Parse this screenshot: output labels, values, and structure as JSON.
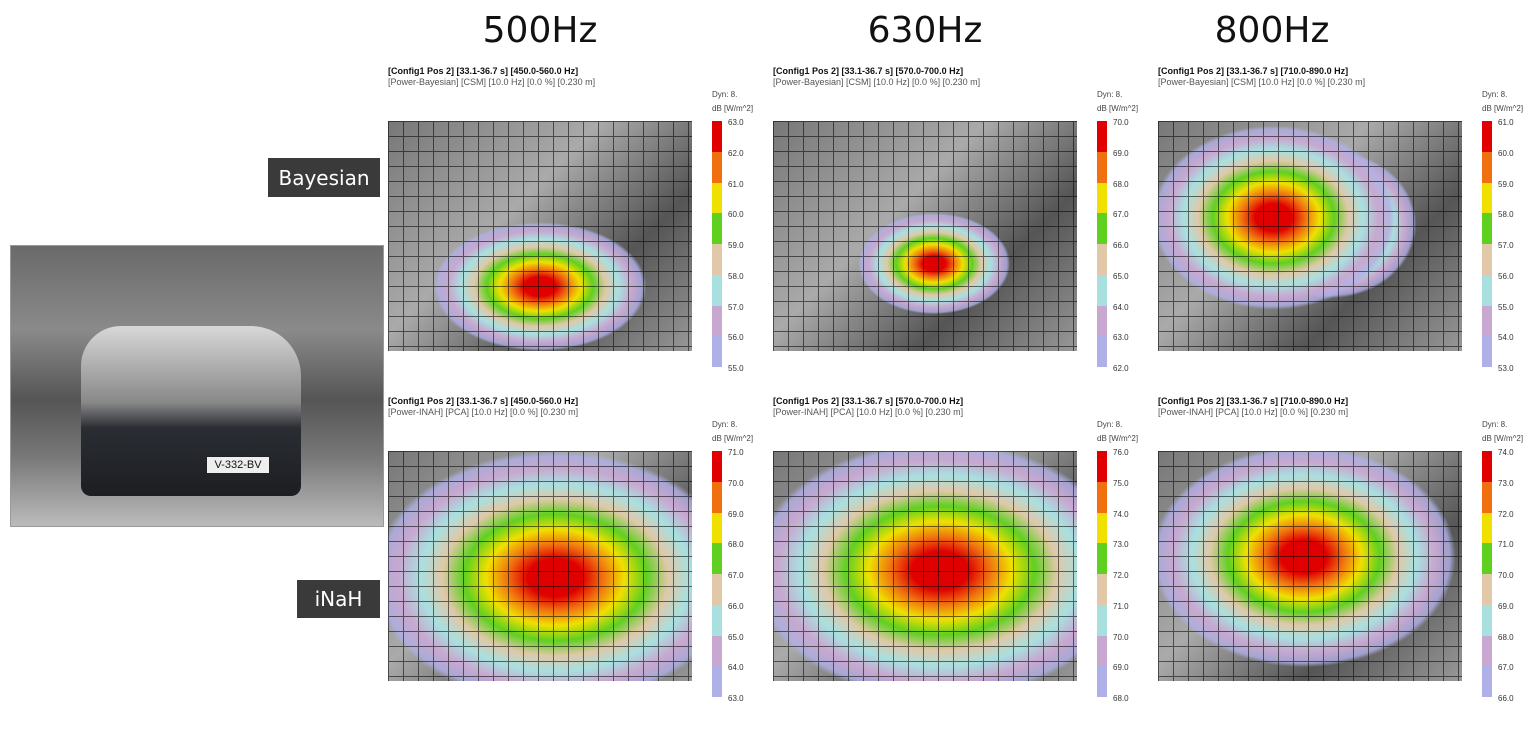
{
  "frequencies": [
    "500Hz",
    "630Hz",
    "800Hz"
  ],
  "row_labels": [
    "Bayesian",
    "iNaH"
  ],
  "photo": {
    "plate_text": "V-332-BV"
  },
  "colorbar": {
    "dyn": "Dyn: 8.",
    "unit": "dB [W/m^2]",
    "colors": [
      "#e00000",
      "#f07010",
      "#f0e000",
      "#60d020",
      "#e0c8a8",
      "#a8e0e0",
      "#c8a8d0",
      "#b0b0e8"
    ]
  },
  "panels": [
    {
      "row": "Bayesian",
      "freq": "500Hz",
      "header": "[Config1  Pos 2] [33.1-36.7 s] [450.0-560.0 Hz]",
      "subheader": "[Power-Bayesian] [CSM] [10.0 Hz] [0.0 %] [0.230 m]",
      "ticks": [
        "63.0",
        "62.0",
        "61.0",
        "60.0",
        "59.0",
        "58.0",
        "57.0",
        "56.0",
        "55.0"
      ]
    },
    {
      "row": "Bayesian",
      "freq": "630Hz",
      "header": "[Config1  Pos 2] [33.1-36.7 s] [570.0-700.0 Hz]",
      "subheader": "[Power-Bayesian] [CSM] [10.0 Hz] [0.0 %] [0.230 m]",
      "ticks": [
        "70.0",
        "69.0",
        "68.0",
        "67.0",
        "66.0",
        "65.0",
        "64.0",
        "63.0",
        "62.0"
      ]
    },
    {
      "row": "Bayesian",
      "freq": "800Hz",
      "header": "[Config1  Pos 2] [33.1-36.7 s] [710.0-890.0 Hz]",
      "subheader": "[Power-Bayesian] [CSM] [10.0 Hz] [0.0 %] [0.230 m]",
      "ticks": [
        "61.0",
        "60.0",
        "59.0",
        "58.0",
        "57.0",
        "56.0",
        "55.0",
        "54.0",
        "53.0"
      ]
    },
    {
      "row": "iNaH",
      "freq": "500Hz",
      "header": "[Config1  Pos 2] [33.1-36.7 s] [450.0-560.0 Hz]",
      "subheader": "[Power-INAH] [PCA] [10.0 Hz] [0.0 %] [0.230 m]",
      "ticks": [
        "71.0",
        "70.0",
        "69.0",
        "68.0",
        "67.0",
        "66.0",
        "65.0",
        "64.0",
        "63.0"
      ]
    },
    {
      "row": "iNaH",
      "freq": "630Hz",
      "header": "[Config1  Pos 2] [33.1-36.7 s] [570.0-700.0 Hz]",
      "subheader": "[Power-INAH] [PCA] [10.0 Hz] [0.0 %] [0.230 m]",
      "ticks": [
        "76.0",
        "75.0",
        "74.0",
        "73.0",
        "72.0",
        "71.0",
        "70.0",
        "69.0",
        "68.0"
      ]
    },
    {
      "row": "iNaH",
      "freq": "800Hz",
      "header": "[Config1  Pos 2] [33.1-36.7 s] [710.0-890.0 Hz]",
      "subheader": "[Power-INAH] [PCA] [10.0 Hz] [0.0 %] [0.230 m]",
      "ticks": [
        "74.0",
        "73.0",
        "72.0",
        "71.0",
        "70.0",
        "69.0",
        "68.0",
        "67.0",
        "66.0"
      ]
    }
  ]
}
